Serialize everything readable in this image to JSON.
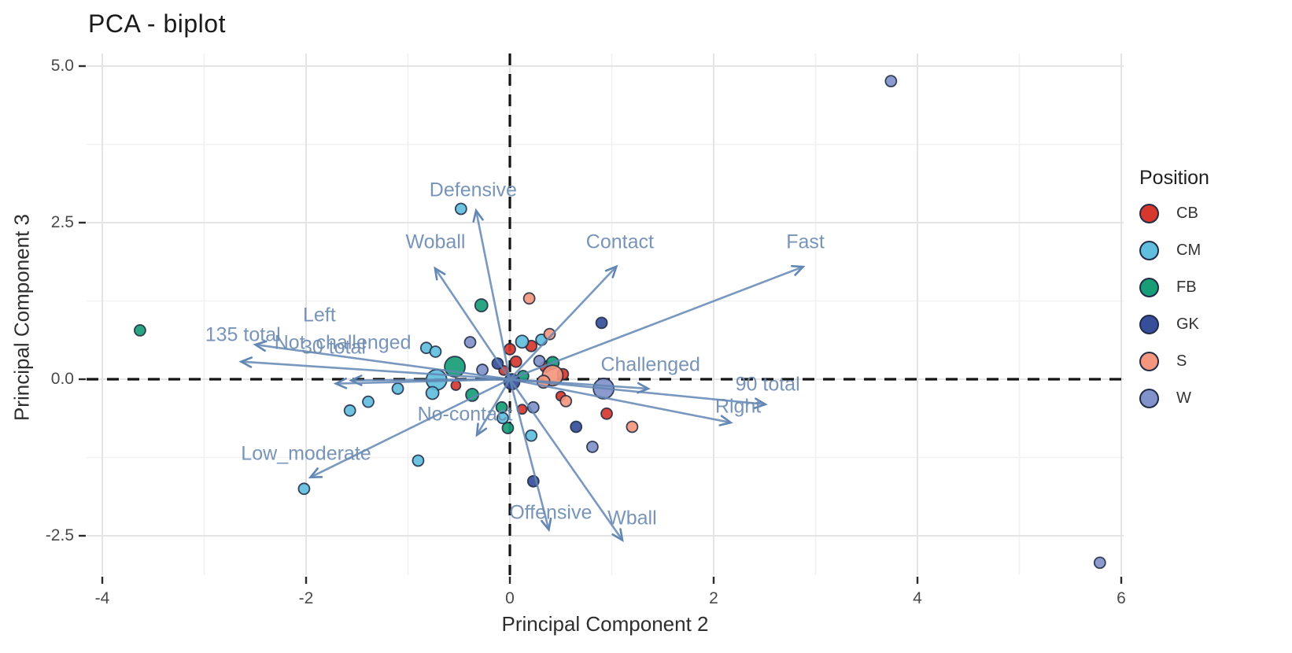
{
  "title": "PCA - biplot",
  "axes": {
    "x": {
      "label": "Principal Component 2",
      "ticks": [
        -4,
        -2,
        0,
        2,
        4,
        6
      ],
      "tick_labels": [
        "-4",
        "-2",
        "0",
        "2",
        "4",
        "6"
      ],
      "minor_ticks": [
        -3,
        -1,
        1,
        3,
        5
      ],
      "range": [
        -4.15,
        6.02
      ]
    },
    "y": {
      "label": "Principal Component 3",
      "ticks": [
        -2.5,
        0,
        2.5,
        5
      ],
      "tick_labels": [
        "-2.5",
        "0.0",
        "2.5",
        "5.0"
      ],
      "minor_ticks": [
        -1.25,
        1.25,
        3.75
      ],
      "range": [
        -3.13,
        5.2
      ]
    }
  },
  "legend": {
    "title": "Position",
    "entries": [
      {
        "label": "CB",
        "color": "#d6382e"
      },
      {
        "label": "CM",
        "color": "#62bede"
      },
      {
        "label": "FB",
        "color": "#189d77"
      },
      {
        "label": "GK",
        "color": "#374f9b"
      },
      {
        "label": "S",
        "color": "#f5977e"
      },
      {
        "label": "W",
        "color": "#8292ca"
      }
    ]
  },
  "colors": {
    "arrow": "#6186b4",
    "loading_label": "#6d8cb3",
    "point_stroke": "#1c2840",
    "dashed_line": "#141414",
    "grid_major": "#e4e4e4",
    "grid_minor": "#f1f1f1",
    "tick_mark": "#2b2b2b"
  },
  "chart_data": {
    "type": "scatter",
    "subtype": "pca-biplot",
    "title": "PCA - biplot",
    "xlabel": "Principal Component 2",
    "ylabel": "Principal Component 3",
    "xlim": [
      -4.15,
      6.02
    ],
    "ylim": [
      -3.13,
      5.2
    ],
    "grid": true,
    "legend_position": "right",
    "reference_lines": {
      "vertical_x": 0,
      "horizontal_y": 0,
      "style": "dashed"
    },
    "loadings": [
      {
        "label": "Defensive",
        "x": -0.33,
        "y": 2.68,
        "label_x": -0.36,
        "label_y": 3.02
      },
      {
        "label": "Woball",
        "x": -0.73,
        "y": 1.76,
        "label_x": -0.73,
        "label_y": 2.18
      },
      {
        "label": "Contact",
        "x": 1.04,
        "y": 1.79,
        "label_x": 1.08,
        "label_y": 2.18
      },
      {
        "label": "Fast",
        "x": 2.87,
        "y": 1.79,
        "label_x": 2.9,
        "label_y": 2.18
      },
      {
        "label": "135 total",
        "x": -2.63,
        "y": 0.28,
        "label_x": -2.62,
        "label_y": 0.7
      },
      {
        "label": "Left",
        "x": -2.49,
        "y": 0.55,
        "label_x": -1.87,
        "label_y": 1.02
      },
      {
        "label": "Not_challenged",
        "x": -1.55,
        "y": -0.02,
        "label_x": -1.64,
        "label_y": 0.58
      },
      {
        "label": "30 total",
        "x": -1.7,
        "y": -0.07,
        "label_x": -1.73,
        "label_y": 0.5
      },
      {
        "label": "Challenged",
        "x": 1.35,
        "y": -0.15,
        "label_x": 1.38,
        "label_y": 0.22
      },
      {
        "label": "90 total",
        "x": 2.5,
        "y": -0.4,
        "label_x": 2.53,
        "label_y": -0.09
      },
      {
        "label": "Right",
        "x": 2.16,
        "y": -0.69,
        "label_x": 2.24,
        "label_y": -0.44
      },
      {
        "label": "Low_moderate",
        "x": -1.95,
        "y": -1.56,
        "label_x": -2.0,
        "label_y": -1.19
      },
      {
        "label": "No-contact",
        "x": -0.32,
        "y": -0.88,
        "label_x": -0.44,
        "label_y": -0.56
      },
      {
        "label": "Offensive",
        "x": 0.38,
        "y": -2.39,
        "label_x": 0.4,
        "label_y": -2.13
      },
      {
        "label": "Wball",
        "x": 1.1,
        "y": -2.56,
        "label_x": 1.2,
        "label_y": -2.22
      }
    ],
    "points": [
      {
        "pos": "CB",
        "x": 0.21,
        "y": 0.53,
        "r": 7
      },
      {
        "pos": "CB",
        "x": 0.0,
        "y": 0.48,
        "r": 7
      },
      {
        "pos": "CB",
        "x": 0.06,
        "y": 0.28,
        "r": 7
      },
      {
        "pos": "CB",
        "x": -0.06,
        "y": 0.14,
        "r": 6
      },
      {
        "pos": "CB",
        "x": -0.53,
        "y": -0.1,
        "r": 6
      },
      {
        "pos": "CB",
        "x": 0.52,
        "y": 0.08,
        "r": 7
      },
      {
        "pos": "CB",
        "x": 0.5,
        "y": -0.27,
        "r": 6
      },
      {
        "pos": "CB",
        "x": 0.95,
        "y": -0.55,
        "r": 7
      },
      {
        "pos": "CB",
        "x": 0.12,
        "y": -0.48,
        "r": 6
      },
      {
        "pos": "CB",
        "x": 0.35,
        "y": 0.2,
        "r": 7
      },
      {
        "pos": "CM",
        "x": -0.48,
        "y": 2.72,
        "r": 7
      },
      {
        "pos": "CM",
        "x": -2.02,
        "y": -1.75,
        "r": 7
      },
      {
        "pos": "CM",
        "x": -0.9,
        "y": -1.3,
        "r": 7
      },
      {
        "pos": "CM",
        "x": -1.57,
        "y": -0.5,
        "r": 7
      },
      {
        "pos": "CM",
        "x": -1.39,
        "y": -0.36,
        "r": 7
      },
      {
        "pos": "CM",
        "x": -0.82,
        "y": 0.5,
        "r": 7
      },
      {
        "pos": "CM",
        "x": -0.73,
        "y": 0.44,
        "r": 7
      },
      {
        "pos": "CM",
        "x": -0.72,
        "y": -0.01,
        "r": 13
      },
      {
        "pos": "CM",
        "x": -0.76,
        "y": -0.22,
        "r": 8
      },
      {
        "pos": "CM",
        "x": 0.12,
        "y": 0.6,
        "r": 8
      },
      {
        "pos": "CM",
        "x": 0.21,
        "y": -0.9,
        "r": 7
      },
      {
        "pos": "CM",
        "x": 0.31,
        "y": 0.63,
        "r": 7
      },
      {
        "pos": "CM",
        "x": -1.1,
        "y": -0.15,
        "r": 7
      },
      {
        "pos": "CM",
        "x": -0.07,
        "y": -0.62,
        "r": 7
      },
      {
        "pos": "FB",
        "x": -3.63,
        "y": 0.78,
        "r": 7
      },
      {
        "pos": "FB",
        "x": -0.28,
        "y": 1.18,
        "r": 8
      },
      {
        "pos": "FB",
        "x": -0.54,
        "y": 0.2,
        "r": 13
      },
      {
        "pos": "FB",
        "x": 0.42,
        "y": 0.26,
        "r": 8
      },
      {
        "pos": "FB",
        "x": -0.37,
        "y": -0.25,
        "r": 8
      },
      {
        "pos": "FB",
        "x": -0.02,
        "y": -0.78,
        "r": 7
      },
      {
        "pos": "FB",
        "x": -0.08,
        "y": -0.45,
        "r": 7
      },
      {
        "pos": "FB",
        "x": 0.13,
        "y": 0.05,
        "r": 7
      },
      {
        "pos": "GK",
        "x": 0.23,
        "y": -1.63,
        "r": 7
      },
      {
        "pos": "GK",
        "x": 0.65,
        "y": -0.76,
        "r": 7
      },
      {
        "pos": "GK",
        "x": 0.9,
        "y": 0.9,
        "r": 7
      },
      {
        "pos": "GK",
        "x": 0.02,
        "y": -0.04,
        "r": 10
      },
      {
        "pos": "GK",
        "x": -0.12,
        "y": 0.25,
        "r": 7
      },
      {
        "pos": "S",
        "x": 0.19,
        "y": 1.29,
        "r": 7
      },
      {
        "pos": "S",
        "x": 0.42,
        "y": 0.06,
        "r": 13
      },
      {
        "pos": "S",
        "x": 1.2,
        "y": -0.76,
        "r": 7
      },
      {
        "pos": "S",
        "x": 0.39,
        "y": 0.72,
        "r": 7
      },
      {
        "pos": "S",
        "x": 0.33,
        "y": -0.04,
        "r": 8
      },
      {
        "pos": "S",
        "x": 0.55,
        "y": -0.35,
        "r": 7
      },
      {
        "pos": "W",
        "x": 3.74,
        "y": 4.76,
        "r": 7
      },
      {
        "pos": "W",
        "x": 5.79,
        "y": -2.93,
        "r": 7
      },
      {
        "pos": "W",
        "x": -0.39,
        "y": 0.59,
        "r": 7
      },
      {
        "pos": "W",
        "x": -0.27,
        "y": 0.15,
        "r": 7
      },
      {
        "pos": "W",
        "x": 0.29,
        "y": 0.29,
        "r": 7
      },
      {
        "pos": "W",
        "x": 0.92,
        "y": -0.15,
        "r": 13
      },
      {
        "pos": "W",
        "x": 0.23,
        "y": -0.45,
        "r": 7
      },
      {
        "pos": "W",
        "x": 0.81,
        "y": -1.08,
        "r": 7
      }
    ]
  }
}
